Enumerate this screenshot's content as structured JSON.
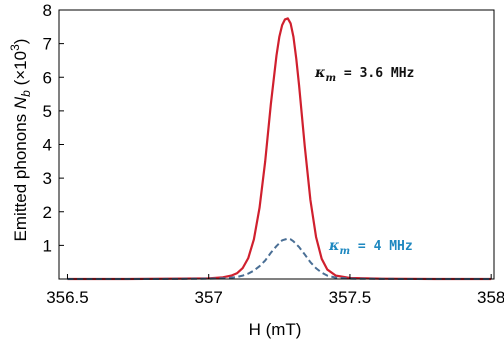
{
  "chart_data": {
    "type": "line",
    "xlabel": "H (mT)",
    "ylabel": {
      "prefix": "Emitted phonons ",
      "symbol": "N",
      "subscript": "b",
      "suffix": " (×10",
      "exponent": "3",
      "close": ")"
    },
    "xlim": [
      356.47,
      358.01
    ],
    "ylim": [
      0,
      8
    ],
    "xticks": [
      356.5,
      357,
      357.5,
      358
    ],
    "xtick_labels": [
      "356.5",
      "357",
      "357.5",
      "358"
    ],
    "yticks": [
      1,
      2,
      3,
      4,
      5,
      6,
      7,
      8
    ],
    "ytick_labels": [
      "1",
      "2",
      "3",
      "4",
      "5",
      "6",
      "7",
      "8"
    ],
    "series": [
      {
        "style": "solid",
        "color": "#d0202e",
        "x": [
          356.5,
          356.7,
          356.9,
          357.0,
          357.05,
          357.08,
          357.1,
          357.12,
          357.14,
          357.16,
          357.18,
          357.2,
          357.22,
          357.24,
          357.25,
          357.26,
          357.27,
          357.28,
          357.29,
          357.3,
          357.31,
          357.32,
          357.34,
          357.36,
          357.38,
          357.4,
          357.42,
          357.45,
          357.5,
          357.6,
          357.8,
          358.0
        ],
        "y": [
          0,
          0,
          0.01,
          0.02,
          0.05,
          0.1,
          0.17,
          0.32,
          0.62,
          1.18,
          2.12,
          3.5,
          5.2,
          6.65,
          7.2,
          7.55,
          7.72,
          7.75,
          7.6,
          7.2,
          6.55,
          5.75,
          3.95,
          2.35,
          1.25,
          0.6,
          0.28,
          0.1,
          0.03,
          0.01,
          0,
          0
        ]
      },
      {
        "style": "dashed",
        "color": "#4a6f95",
        "x": [
          356.5,
          356.8,
          357.0,
          357.05,
          357.08,
          357.1,
          357.12,
          357.14,
          357.16,
          357.18,
          357.2,
          357.22,
          357.24,
          357.26,
          357.28,
          357.29,
          357.3,
          357.32,
          357.34,
          357.36,
          357.38,
          357.4,
          357.42,
          357.45,
          357.5,
          357.7,
          358.0
        ],
        "y": [
          0,
          0,
          0.01,
          0.02,
          0.04,
          0.06,
          0.1,
          0.16,
          0.25,
          0.38,
          0.55,
          0.78,
          0.98,
          1.15,
          1.2,
          1.18,
          1.12,
          0.95,
          0.73,
          0.5,
          0.32,
          0.19,
          0.1,
          0.04,
          0.01,
          0,
          0
        ]
      }
    ],
    "annotations": [
      {
        "symbol": "κ",
        "subscript": "m",
        "text": " = 3.6 MHz",
        "color": "#111111"
      },
      {
        "symbol": "κ",
        "subscript": "m",
        "text": " = 4 MHz",
        "color": "#1e88c0"
      }
    ]
  }
}
